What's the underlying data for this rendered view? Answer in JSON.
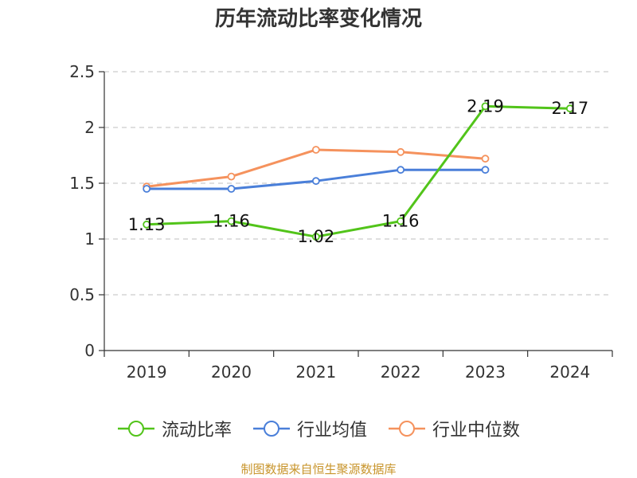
{
  "source_text": "制图数据来自恒生聚源数据库",
  "chart_data": {
    "type": "line",
    "title": "历年流动比率变化情况",
    "xlabel": "",
    "ylabel": "",
    "categories": [
      "2019",
      "2020",
      "2021",
      "2022",
      "2023",
      "2024"
    ],
    "ylim": [
      0,
      2.5
    ],
    "yticks": [
      "0",
      "0.5",
      "1",
      "1.5",
      "2",
      "2.5"
    ],
    "grid": true,
    "legend_position": "bottom",
    "series": [
      {
        "name": "流动比率",
        "color": "#52c41a",
        "values": [
          1.13,
          1.16,
          1.02,
          1.16,
          2.19,
          2.17
        ],
        "labels": [
          "1.13",
          "1.16",
          "1.02",
          "1.16",
          "2.19",
          "2.17"
        ]
      },
      {
        "name": "行业均值",
        "color": "#4a7fd9",
        "values": [
          1.45,
          1.45,
          1.52,
          1.62,
          1.62,
          null
        ],
        "labels": []
      },
      {
        "name": "行业中位数",
        "color": "#f5925d",
        "values": [
          1.47,
          1.56,
          1.8,
          1.78,
          1.72,
          null
        ],
        "labels": []
      }
    ]
  }
}
